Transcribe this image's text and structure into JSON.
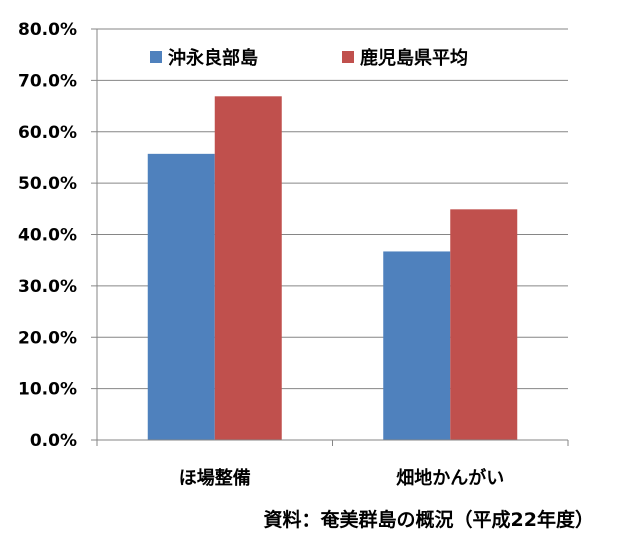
{
  "chart_data": {
    "type": "bar",
    "categories": [
      "ほ場整備",
      "畑地かんがい"
    ],
    "series": [
      {
        "name": "沖永良部島",
        "values": [
          55.7,
          36.7
        ]
      },
      {
        "name": "鹿児島県平均",
        "values": [
          66.9,
          44.9
        ]
      }
    ],
    "ylim": [
      0,
      80
    ],
    "yticks": [
      "0.0%",
      "10.0%",
      "20.0%",
      "30.0%",
      "40.0%",
      "50.0%",
      "60.0%",
      "70.0%",
      "80.0%"
    ],
    "ytick_values": [
      0,
      10,
      20,
      30,
      40,
      50,
      60,
      70,
      80
    ],
    "grid": true,
    "legend_position": "top",
    "colors": {
      "series_1": "#4F81BD",
      "series_2": "#C0504D",
      "grid": "#868686",
      "axis": "#868686"
    }
  },
  "source_note": "資料：奄美群島の概況（平成22年度）"
}
